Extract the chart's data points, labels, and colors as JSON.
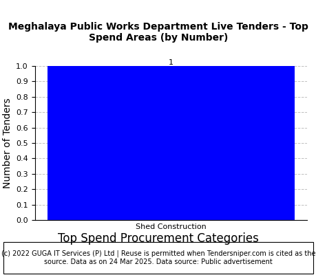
{
  "title": "Meghalaya Public Works Department Live Tenders - Top\nSpend Areas (by Number)",
  "categories": [
    "Shed Construction"
  ],
  "values": [
    1
  ],
  "bar_color": "#0000FF",
  "ylabel": "Number of Tenders",
  "xlabel": "Top Spend Procurement Categories",
  "ylim": [
    0,
    1.0
  ],
  "yticks": [
    0.0,
    0.1,
    0.2,
    0.3,
    0.4,
    0.5,
    0.6,
    0.7,
    0.8,
    0.9,
    1.0
  ],
  "bar_label_value": "1",
  "xtick_label": "Shed Construction",
  "footer_text": "(c) 2022 GUGA IT Services (P) Ltd | Reuse is permitted when Tendersniper.com is cited as the\nsource. Data as on 24 Mar 2025. Data source: Public advertisement",
  "title_fontsize": 10,
  "axis_label_fontsize": 10,
  "xtick_fontsize": 8,
  "ytick_fontsize": 8,
  "bar_label_fontsize": 8,
  "xlabel_fontsize": 12,
  "footer_fontsize": 7,
  "bg_color": "#ffffff"
}
